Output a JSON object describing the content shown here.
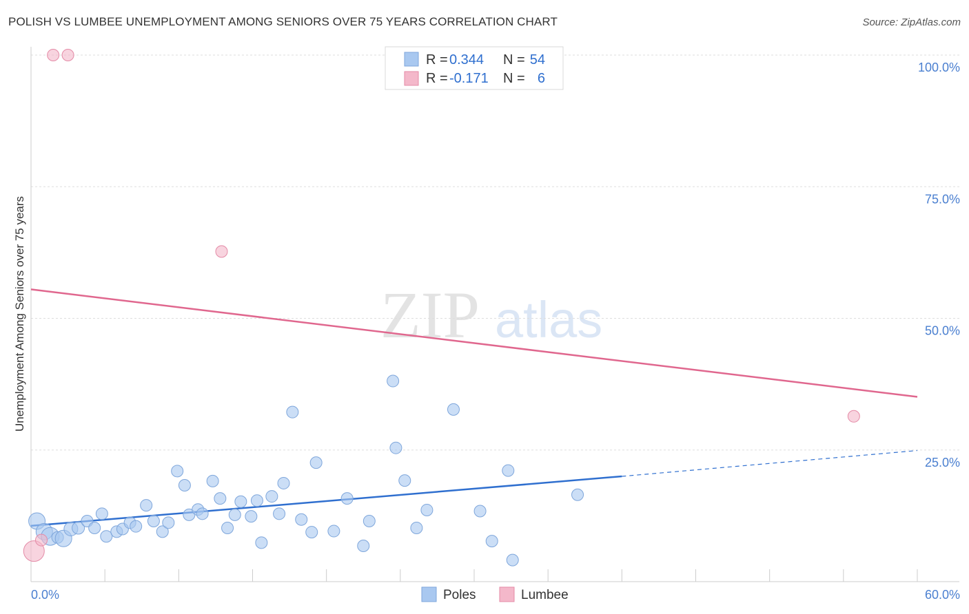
{
  "header": {
    "title": "POLISH VS LUMBEE UNEMPLOYMENT AMONG SENIORS OVER 75 YEARS CORRELATION CHART",
    "source": "Source: ZipAtlas.com"
  },
  "legend": {
    "rows": [
      {
        "r_label": "R = ",
        "r_value": "0.344",
        "n_label": "N = ",
        "n_value": "54"
      },
      {
        "r_label": "R = ",
        "r_value": "-0.171",
        "n_label": "N = ",
        "n_value": "6"
      }
    ]
  },
  "watermark": {
    "zip": "ZIP",
    "atlas": "atlas"
  },
  "chart_data": {
    "type": "scatter",
    "title": "POLISH VS LUMBEE UNEMPLOYMENT AMONG SENIORS OVER 75 YEARS CORRELATION CHART",
    "xlabel": "",
    "ylabel": "Unemployment Among Seniors over 75 years",
    "xlim": [
      0,
      60
    ],
    "ylim": [
      0,
      100
    ],
    "x_tick_labels": [
      "0.0%",
      "60.0%"
    ],
    "y_ticks": [
      25,
      50,
      75,
      100
    ],
    "y_tick_labels": [
      "25.0%",
      "50.0%",
      "75.0%",
      "100.0%"
    ],
    "grid": true,
    "legend_position": "top-center",
    "colors": {
      "Poles": "#a9c8f0",
      "Poles_line": "#2f6fcf",
      "Lumbee": "#f4b8ca",
      "Lumbee_line": "#e0678e"
    },
    "series": [
      {
        "name": "Poles",
        "points": [
          [
            0.4,
            11.5
          ],
          [
            0.9,
            9.5
          ],
          [
            1.3,
            8.6
          ],
          [
            1.8,
            8.4
          ],
          [
            2.2,
            8.2
          ],
          [
            2.7,
            10.0
          ],
          [
            3.2,
            10.2
          ],
          [
            3.8,
            11.5
          ],
          [
            4.3,
            10.2
          ],
          [
            4.8,
            12.9
          ],
          [
            5.1,
            8.6
          ],
          [
            5.8,
            9.5
          ],
          [
            6.2,
            10.0
          ],
          [
            6.7,
            11.2
          ],
          [
            7.1,
            10.5
          ],
          [
            7.8,
            14.5
          ],
          [
            8.3,
            11.5
          ],
          [
            8.9,
            9.5
          ],
          [
            9.3,
            11.2
          ],
          [
            9.9,
            21.0
          ],
          [
            10.4,
            18.3
          ],
          [
            10.7,
            12.7
          ],
          [
            11.3,
            13.7
          ],
          [
            11.6,
            12.9
          ],
          [
            12.3,
            19.1
          ],
          [
            12.8,
            15.8
          ],
          [
            13.3,
            10.2
          ],
          [
            13.8,
            12.7
          ],
          [
            14.2,
            15.2
          ],
          [
            14.9,
            12.4
          ],
          [
            15.6,
            7.4
          ],
          [
            15.3,
            15.4
          ],
          [
            16.3,
            16.2
          ],
          [
            16.8,
            12.9
          ],
          [
            17.1,
            18.7
          ],
          [
            17.7,
            32.2
          ],
          [
            18.3,
            11.8
          ],
          [
            19.0,
            9.4
          ],
          [
            19.3,
            22.6
          ],
          [
            20.5,
            9.6
          ],
          [
            21.4,
            15.8
          ],
          [
            22.5,
            6.8
          ],
          [
            22.9,
            11.5
          ],
          [
            24.5,
            38.1
          ],
          [
            24.7,
            25.4
          ],
          [
            25.3,
            19.2
          ],
          [
            26.1,
            10.2
          ],
          [
            26.8,
            13.6
          ],
          [
            28.6,
            32.7
          ],
          [
            30.4,
            13.4
          ],
          [
            31.2,
            7.7
          ],
          [
            32.3,
            21.1
          ],
          [
            32.6,
            4.1
          ],
          [
            37.0,
            16.5
          ]
        ],
        "trend": {
          "x_start": 0.0,
          "y_start": 10.6,
          "x_solid_end": 40.0,
          "y_solid_end": 20.0,
          "x_end": 60.0,
          "y_end": 24.9
        }
      },
      {
        "name": "Lumbee",
        "points": [
          [
            0.2,
            5.8
          ],
          [
            0.7,
            7.9
          ],
          [
            1.5,
            100.0
          ],
          [
            2.5,
            100.0
          ],
          [
            12.9,
            62.7
          ],
          [
            55.7,
            31.4
          ]
        ],
        "trend": {
          "x_start": 0.0,
          "y_start": 55.5,
          "x_end": 60.0,
          "y_end": 35.1
        }
      }
    ]
  }
}
